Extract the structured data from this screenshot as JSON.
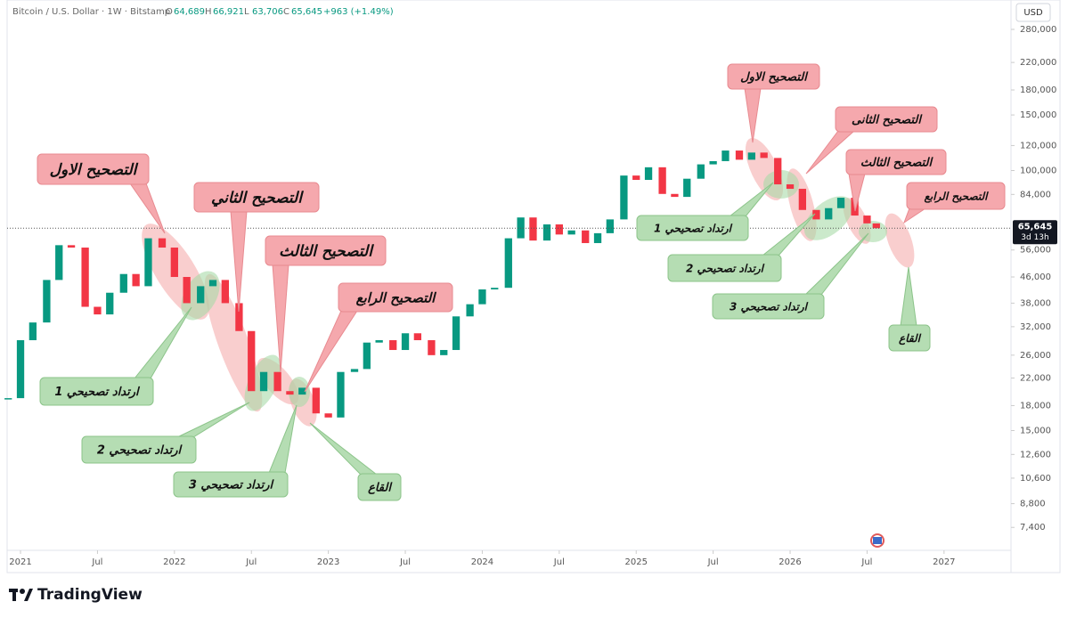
{
  "chart_data": {
    "type": "candlestick",
    "title": "Bitcoin / U.S. Dollar · 1W · Bitstamp",
    "ohlc": [
      {
        "label": "O",
        "text": "64,689"
      },
      {
        "label": "H",
        "text": "66,921"
      },
      {
        "label": "L",
        "text": "63,706"
      },
      {
        "label": "C",
        "text": "65,645"
      }
    ],
    "change": "+963 (+1.49%)",
    "currency": "USD",
    "last_price": 65645,
    "last_price_label": "65,645",
    "countdown": "3d 13h",
    "log_scale": true,
    "up_color": "#089981",
    "down_color": "#f23645",
    "x": [
      2020.92,
      2021.0,
      2021.08,
      2021.17,
      2021.25,
      2021.33,
      2021.42,
      2021.5,
      2021.58,
      2021.67,
      2021.75,
      2021.83,
      2021.92,
      2022.0,
      2022.08,
      2022.17,
      2022.25,
      2022.33,
      2022.42,
      2022.5,
      2022.58,
      2022.67,
      2022.75,
      2022.83,
      2022.92,
      2023.0,
      2023.08,
      2023.17,
      2023.25,
      2023.33,
      2023.42,
      2023.5,
      2023.58,
      2023.67,
      2023.75,
      2023.83,
      2023.92,
      2024.0,
      2024.08,
      2024.17,
      2024.25,
      2024.33,
      2024.42,
      2024.5,
      2024.58,
      2024.67,
      2024.75,
      2024.83,
      2024.92,
      2025.0,
      2025.08,
      2025.17,
      2025.25,
      2025.33,
      2025.42,
      2025.5,
      2025.58,
      2025.67,
      2025.75,
      2025.83,
      2025.92,
      2026.0,
      2026.08,
      2026.17,
      2026.25,
      2026.33,
      2026.42,
      2026.5,
      2026.56
    ],
    "values": [
      19000,
      29000,
      33000,
      45000,
      58000,
      57000,
      37000,
      35000,
      41000,
      47000,
      43000,
      61000,
      57000,
      46000,
      38000,
      43000,
      45000,
      38000,
      31000,
      20000,
      23000,
      20000,
      19500,
      20500,
      17000,
      16500,
      23000,
      23500,
      28500,
      29000,
      27000,
      30500,
      29000,
      26000,
      27000,
      34500,
      37700,
      42000,
      42500,
      61000,
      71000,
      60000,
      67500,
      62700,
      64600,
      58900,
      63300,
      70000,
      96400,
      93400,
      102400,
      84300,
      82500,
      94200,
      104600,
      107100,
      115700,
      108200,
      114000,
      109600,
      90400,
      87500,
      75000,
      70000,
      76000,
      82000,
      72000,
      68000,
      65645
    ],
    "xlim": [
      2020.913,
      2027.435
    ],
    "xticks": [
      2021,
      {
        "value": 2021.5,
        "label": "Jul"
      },
      2022,
      {
        "value": 2022.5,
        "label": "Jul"
      },
      2023,
      {
        "value": 2023.5,
        "label": "Jul"
      },
      2024,
      {
        "value": 2024.5,
        "label": "Jul"
      },
      2025,
      {
        "value": 2025.5,
        "label": "Jul"
      },
      2026,
      {
        "value": 2026.5,
        "label": "Jul"
      },
      2027
    ],
    "ylim": [
      6260,
      347000
    ],
    "yticks": [
      {
        "value": 280000,
        "label": "280,000"
      },
      {
        "value": 220000,
        "label": "220,000"
      },
      {
        "value": 180000,
        "label": "180,000"
      },
      {
        "value": 150000,
        "label": "150,000"
      },
      {
        "value": 120000,
        "label": "120,000"
      },
      {
        "value": 100000,
        "label": "100,000"
      },
      {
        "value": 84000,
        "label": "84,000"
      },
      {
        "value": 56000,
        "label": "56,000"
      },
      {
        "value": 46000,
        "label": "46,000"
      },
      {
        "value": 38000,
        "label": "38,000"
      },
      {
        "value": 32000,
        "label": "32,000"
      },
      {
        "value": 26000,
        "label": "26,000"
      },
      {
        "value": 22000,
        "label": "22,000"
      },
      {
        "value": 18000,
        "label": "18,000"
      },
      {
        "value": 15000,
        "label": "15,000"
      },
      {
        "value": 12600,
        "label": "12,600"
      },
      {
        "value": 10600,
        "label": "10,600"
      },
      {
        "value": 8800,
        "label": "8,800"
      },
      {
        "value": 7400,
        "label": "7,400"
      }
    ],
    "annotations": [
      "التصحيح الاول",
      "التصحيح الثاني",
      "التصحيح الثالث",
      "التصحيح الرابع",
      "ارتداد تصحيحي 1",
      "ارتداد تصحيحي 2",
      "ارتداد تصحيحي 3",
      "القاع",
      "التصحيح الاول",
      "التصحيح الثانى",
      "التصحيح الثالث",
      "التصحيح الرابع",
      "ارتداد تصحيحي 1",
      "ارتداد تصحيحي 2",
      "ارتداد تصحيحي 3",
      "القاع"
    ],
    "brand": "TradingView"
  }
}
